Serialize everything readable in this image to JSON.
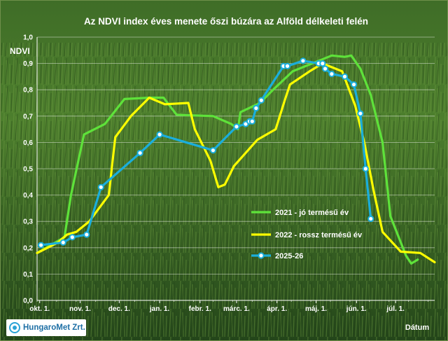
{
  "chart_data": {
    "type": "line",
    "title": "Az NDVI index éves menete őszi búzára az Alföld délkeleti felén",
    "ylabel": "NDVI",
    "xlabel": "Dátum",
    "ylim": [
      0,
      1
    ],
    "xlim": [
      "2025-09-29",
      "2026-07-31"
    ],
    "yticks": [
      "0,0",
      "0,1",
      "0,2",
      "0,3",
      "0,4",
      "0,5",
      "0,6",
      "0,7",
      "0,8",
      "0,9",
      "1,0"
    ],
    "xticks": [
      {
        "label": "okt. 1.",
        "date": "2025-10-01"
      },
      {
        "label": "nov. 1.",
        "date": "2025-11-01"
      },
      {
        "label": "dec. 1.",
        "date": "2025-12-01"
      },
      {
        "label": "jan. 1.",
        "date": "2026-01-01"
      },
      {
        "label": "febr. 1.",
        "date": "2026-02-01"
      },
      {
        "label": "márc. 1.",
        "date": "2026-03-01"
      },
      {
        "label": "ápr. 1.",
        "date": "2026-04-01"
      },
      {
        "label": "máj. 1.",
        "date": "2026-05-01"
      },
      {
        "label": "jún. 1.",
        "date": "2026-06-01"
      },
      {
        "label": "júl. 1.",
        "date": "2026-07-01"
      }
    ],
    "grid": true,
    "legend_position": "center-right",
    "series": [
      {
        "name": "2021 - jó termésű év",
        "color": "#5ee23a",
        "markers": false,
        "points": [
          [
            "2025-09-29",
            0.18
          ],
          [
            "2025-10-20",
            0.24
          ],
          [
            "2025-10-25",
            0.4
          ],
          [
            "2025-11-04",
            0.63
          ],
          [
            "2025-11-20",
            0.67
          ],
          [
            "2025-12-05",
            0.765
          ],
          [
            "2025-12-25",
            0.77
          ],
          [
            "2026-01-04",
            0.77
          ],
          [
            "2026-01-14",
            0.705
          ],
          [
            "2026-02-11",
            0.7
          ],
          [
            "2026-02-25",
            0.67
          ],
          [
            "2026-03-02",
            0.65
          ],
          [
            "2026-03-04",
            0.715
          ],
          [
            "2026-03-19",
            0.75
          ],
          [
            "2026-03-29",
            0.8
          ],
          [
            "2026-04-13",
            0.87
          ],
          [
            "2026-04-28",
            0.9
          ],
          [
            "2026-05-13",
            0.93
          ],
          [
            "2026-05-23",
            0.925
          ],
          [
            "2026-05-28",
            0.93
          ],
          [
            "2026-06-04",
            0.88
          ],
          [
            "2026-06-12",
            0.78
          ],
          [
            "2026-06-21",
            0.6
          ],
          [
            "2026-06-27",
            0.32
          ],
          [
            "2026-07-09",
            0.17
          ],
          [
            "2026-07-13",
            0.14
          ],
          [
            "2026-07-18",
            0.155
          ]
        ]
      },
      {
        "name": "2022 - rossz termésű év",
        "color": "#ffff00",
        "markers": false,
        "points": [
          [
            "2025-09-29",
            0.18
          ],
          [
            "2025-10-15",
            0.22
          ],
          [
            "2025-10-22",
            0.25
          ],
          [
            "2025-10-29",
            0.26
          ],
          [
            "2025-11-08",
            0.3
          ],
          [
            "2025-11-23",
            0.4
          ],
          [
            "2025-11-28",
            0.62
          ],
          [
            "2025-12-10",
            0.7
          ],
          [
            "2025-12-24",
            0.77
          ],
          [
            "2026-01-05",
            0.745
          ],
          [
            "2026-01-23",
            0.75
          ],
          [
            "2026-01-28",
            0.65
          ],
          [
            "2026-02-09",
            0.53
          ],
          [
            "2026-02-15",
            0.43
          ],
          [
            "2026-02-20",
            0.44
          ],
          [
            "2026-02-27",
            0.51
          ],
          [
            "2026-03-17",
            0.61
          ],
          [
            "2026-03-31",
            0.65
          ],
          [
            "2026-04-07",
            0.76
          ],
          [
            "2026-04-11",
            0.82
          ],
          [
            "2026-04-26",
            0.87
          ],
          [
            "2026-05-06",
            0.9
          ],
          [
            "2026-05-21",
            0.87
          ],
          [
            "2026-05-31",
            0.74
          ],
          [
            "2026-06-07",
            0.6
          ],
          [
            "2026-06-14",
            0.42
          ],
          [
            "2026-06-21",
            0.26
          ],
          [
            "2026-07-05",
            0.185
          ],
          [
            "2026-07-20",
            0.18
          ],
          [
            "2026-07-31",
            0.145
          ]
        ]
      },
      {
        "name": "2025-26",
        "color": "#1aaedc",
        "markers": true,
        "points": [
          [
            "2025-10-02",
            0.21
          ],
          [
            "2025-10-19",
            0.22
          ],
          [
            "2025-10-26",
            0.24
          ],
          [
            "2025-11-06",
            0.25
          ],
          [
            "2025-11-17",
            0.43
          ],
          [
            "2025-12-17",
            0.56
          ],
          [
            "2026-01-01",
            0.63
          ],
          [
            "2026-02-11",
            0.57
          ],
          [
            "2026-03-01",
            0.66
          ],
          [
            "2026-03-08",
            0.67
          ],
          [
            "2026-03-11",
            0.68
          ],
          [
            "2026-03-13",
            0.68
          ],
          [
            "2026-03-16",
            0.73
          ],
          [
            "2026-03-20",
            0.76
          ],
          [
            "2026-04-06",
            0.89
          ],
          [
            "2026-04-09",
            0.89
          ],
          [
            "2026-04-21",
            0.91
          ],
          [
            "2026-05-03",
            0.9
          ],
          [
            "2026-05-06",
            0.9
          ],
          [
            "2026-05-08",
            0.88
          ],
          [
            "2026-05-13",
            0.86
          ],
          [
            "2026-05-23",
            0.85
          ],
          [
            "2026-05-30",
            0.82
          ],
          [
            "2026-06-04",
            0.71
          ],
          [
            "2026-06-08",
            0.5
          ],
          [
            "2026-06-12",
            0.31
          ]
        ]
      }
    ]
  },
  "logo": {
    "text": "HungaroMet Zrt."
  }
}
